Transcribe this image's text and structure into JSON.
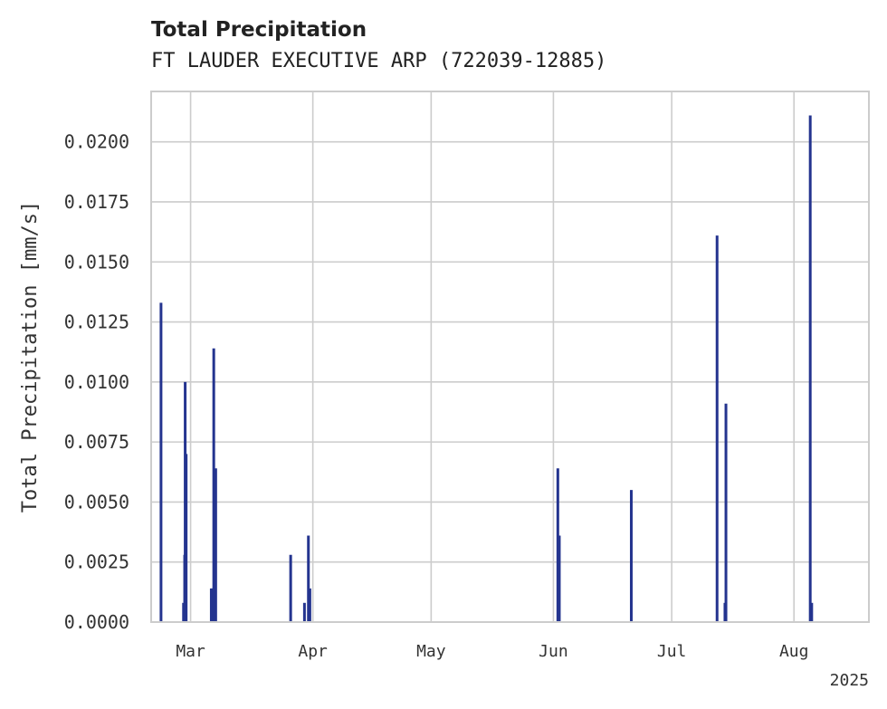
{
  "chart_data": {
    "type": "bar",
    "title": "Total Precipitation",
    "subtitle": "FT LAUDER EXECUTIVE ARP (722039-12885)",
    "ylabel": "Total Precipitation [mm/s]",
    "xlabel": "",
    "x_offset_label": "2025",
    "ylim": [
      0,
      0.0221
    ],
    "yticks": [
      "0.0000",
      "0.0025",
      "0.0050",
      "0.0075",
      "0.0100",
      "0.0125",
      "0.0150",
      "0.0175",
      "0.0200"
    ],
    "xlim": [
      "2025-02-19",
      "2025-08-20"
    ],
    "xticks": [
      {
        "date": "2025-03-01",
        "label": "Mar"
      },
      {
        "date": "2025-04-01",
        "label": "Apr"
      },
      {
        "date": "2025-05-01",
        "label": "May"
      },
      {
        "date": "2025-06-01",
        "label": "Jun"
      },
      {
        "date": "2025-07-01",
        "label": "Jul"
      },
      {
        "date": "2025-08-01",
        "label": "Aug"
      }
    ],
    "color": "#24348f",
    "grid": true,
    "series": [
      {
        "name": "Total Precipitation",
        "points": [
          {
            "x": "2025-02-21T12:00",
            "y": 0.0133
          },
          {
            "x": "2025-02-27T05:00",
            "y": 0.0008
          },
          {
            "x": "2025-02-27T12:00",
            "y": 0.0028
          },
          {
            "x": "2025-02-27T15:00",
            "y": 0.01
          },
          {
            "x": "2025-02-27T21:00",
            "y": 0.007
          },
          {
            "x": "2025-03-06T06:00",
            "y": 0.0014
          },
          {
            "x": "2025-03-06T14:00",
            "y": 0.0014
          },
          {
            "x": "2025-03-06T21:00",
            "y": 0.0114
          },
          {
            "x": "2025-03-07T09:00",
            "y": 0.0064
          },
          {
            "x": "2025-03-26T09:00",
            "y": 0.0028
          },
          {
            "x": "2025-03-29T21:00",
            "y": 0.0008
          },
          {
            "x": "2025-03-30T21:00",
            "y": 0.0036
          },
          {
            "x": "2025-03-31T06:00",
            "y": 0.0014
          },
          {
            "x": "2025-06-02T03:00",
            "y": 0.0064
          },
          {
            "x": "2025-06-02T12:00",
            "y": 0.0036
          },
          {
            "x": "2025-06-20T18:00",
            "y": 0.0055
          },
          {
            "x": "2025-07-12T12:00",
            "y": 0.0161
          },
          {
            "x": "2025-07-14T12:00",
            "y": 0.0008
          },
          {
            "x": "2025-07-14T18:00",
            "y": 0.0091
          },
          {
            "x": "2025-08-05T03:00",
            "y": 0.0211
          },
          {
            "x": "2025-08-05T12:00",
            "y": 0.0008
          }
        ]
      }
    ]
  }
}
